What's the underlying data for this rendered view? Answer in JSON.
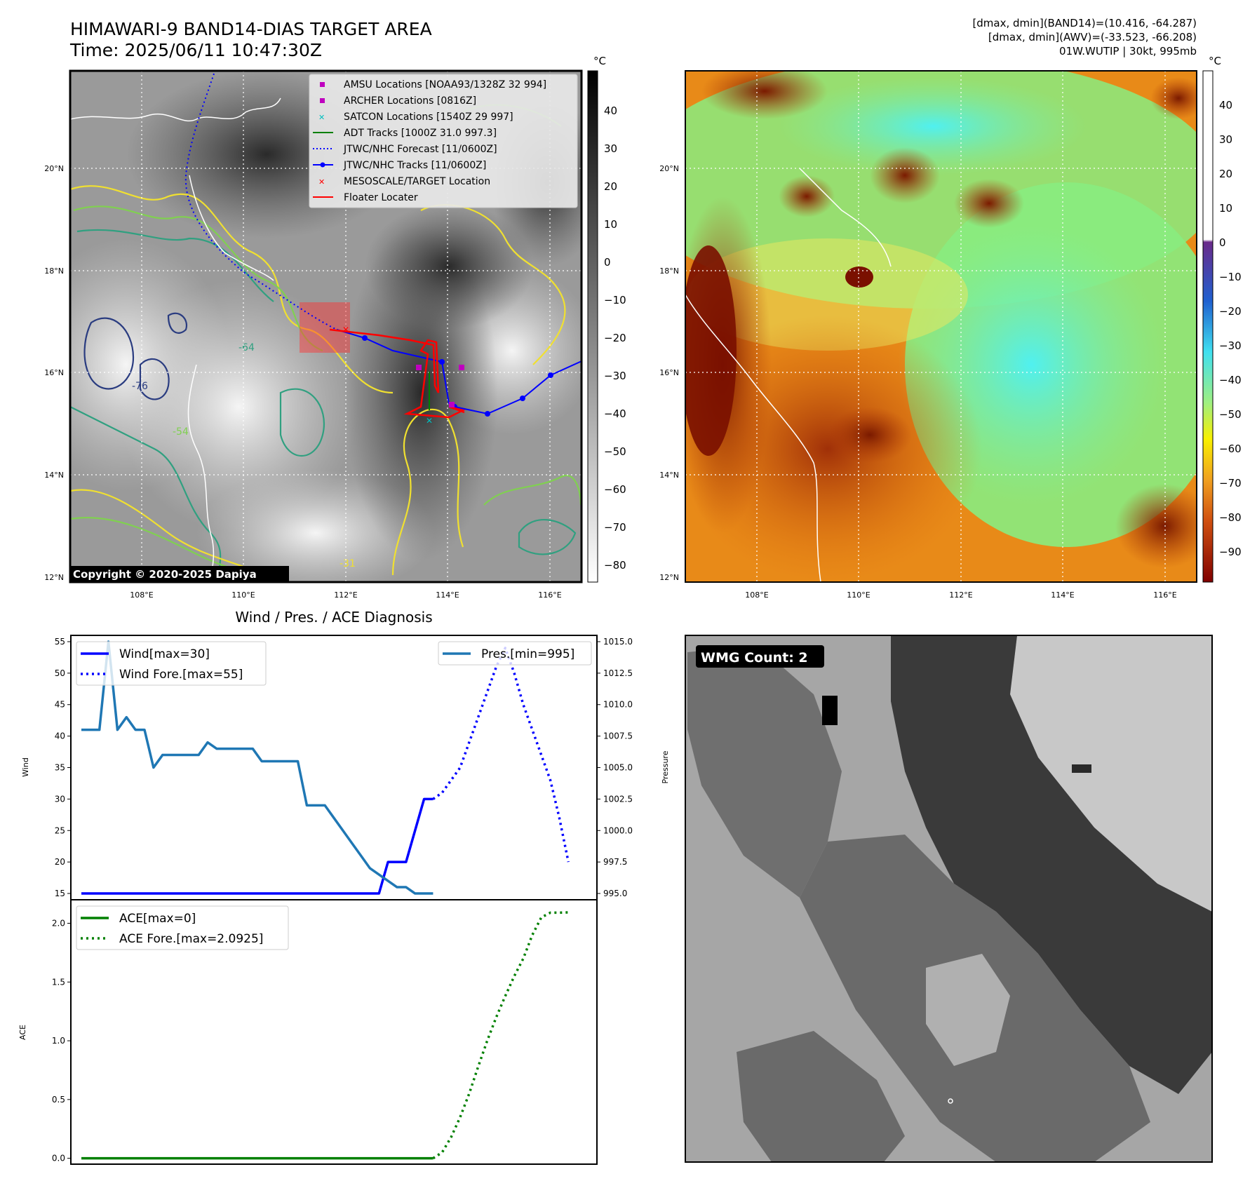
{
  "header": {
    "title_line1": "HIMAWARI-9 BAND14-DIAS TARGET AREA",
    "title_line2": "Time: 2025/06/11 10:47:30Z",
    "info_line1": "[dmax, dmin](BAND14)=(10.416, -64.287)",
    "info_line2": "[dmax, dmin](AWV)=(-33.523, -66.208)",
    "info_line3": "01W.WUTIP | 30kt, 995mb"
  },
  "map": {
    "lat_labels": [
      "20°N",
      "18°N",
      "16°N",
      "14°N",
      "12°N"
    ],
    "lon_labels": [
      "108°E",
      "110°E",
      "112°E",
      "114°E",
      "116°E"
    ],
    "copyright": "Copyright © 2020-2025 Dapiya",
    "legend": [
      {
        "label": "AMSU Locations [NOAA93/1328Z 32 994]",
        "marker": "square",
        "color": "#bf00bf"
      },
      {
        "label": "ARCHER Locations [0816Z]",
        "marker": "square",
        "color": "#bf00bf"
      },
      {
        "label": "SATCON Locations [1540Z 29 997]",
        "marker": "x",
        "color": "#00bfbf"
      },
      {
        "label": "ADT Tracks [1000Z 31.0 997.3]",
        "marker": "line",
        "color": "#008000"
      },
      {
        "label": "JTWC/NHC Forecast [11/0600Z]",
        "marker": "dotted",
        "color": "#0000ff"
      },
      {
        "label": "JTWC/NHC Tracks [11/0600Z]",
        "marker": "line-dot",
        "color": "#0000ff"
      },
      {
        "label": "MESOSCALE/TARGET Location",
        "marker": "x",
        "color": "#ff0000"
      },
      {
        "label": "Floater Locater",
        "marker": "line",
        "color": "#ff0000"
      }
    ],
    "contour_labels": [
      "-64",
      "-54",
      "-76",
      "-31"
    ]
  },
  "colorbar_left": {
    "unit": "°C",
    "ticks": [
      "40",
      "30",
      "20",
      "10",
      "0",
      "−10",
      "−20",
      "−30",
      "−40",
      "−50",
      "−60",
      "−70",
      "−80"
    ]
  },
  "colorbar_right": {
    "unit": "°C",
    "ticks": [
      "40",
      "30",
      "20",
      "10",
      "0",
      "−10",
      "−20",
      "−30",
      "−40",
      "−50",
      "−60",
      "−70",
      "−80",
      "−90"
    ]
  },
  "wmg": {
    "label": "WMG Count: 2"
  },
  "chart_data": [
    {
      "type": "line",
      "title": "Wind / Pres. / ACE Diagnosis",
      "ylabel": "Wind",
      "ylabel_right": "Pressure",
      "ylim": [
        14,
        56
      ],
      "ylim_right": [
        994.5,
        1015.5
      ],
      "yticks": [
        "55",
        "50",
        "45",
        "40",
        "35",
        "30",
        "25",
        "20",
        "15"
      ],
      "yticks_right": [
        "1015.0",
        "1012.5",
        "1010.0",
        "1007.5",
        "1005.0",
        "1002.5",
        "1000.0",
        "997.5",
        "995.0"
      ],
      "series": [
        {
          "name": "Wind[max=30]",
          "color": "#0000ff",
          "style": "solid",
          "axis": "left",
          "x": [
            0,
            1,
            2,
            3,
            4,
            5,
            6,
            7,
            8,
            9,
            10,
            11,
            12,
            13,
            14,
            15,
            16,
            17,
            18,
            19,
            20,
            21,
            22,
            23,
            24,
            25,
            26,
            27,
            28,
            29,
            30,
            31,
            32,
            33,
            34,
            35,
            36,
            37,
            38,
            39
          ],
          "values": [
            15,
            15,
            15,
            15,
            15,
            15,
            15,
            15,
            15,
            15,
            15,
            15,
            15,
            15,
            15,
            15,
            15,
            15,
            15,
            15,
            15,
            15,
            15,
            15,
            15,
            15,
            15,
            15,
            15,
            15,
            15,
            15,
            15,
            15,
            20,
            20,
            20,
            25,
            30,
            30
          ]
        },
        {
          "name": "Wind Fore.[max=55]",
          "color": "#0000ff",
          "style": "dotted",
          "axis": "left",
          "x": [
            39,
            40,
            41,
            42,
            43,
            44,
            45,
            46,
            47,
            48,
            49,
            50,
            51,
            52,
            53,
            54
          ],
          "values": [
            30,
            31,
            33,
            35,
            39,
            43,
            47,
            51,
            54,
            50,
            45,
            41,
            37,
            33,
            27,
            20
          ]
        },
        {
          "name": "Pres.[min=995]",
          "color": "#1f77b4",
          "style": "solid",
          "axis": "right",
          "x": [
            0,
            1,
            2,
            3,
            4,
            5,
            6,
            7,
            8,
            9,
            10,
            11,
            12,
            13,
            14,
            15,
            16,
            17,
            18,
            19,
            20,
            21,
            22,
            23,
            24,
            25,
            26,
            27,
            28,
            29,
            30,
            31,
            32,
            33,
            34,
            35,
            36,
            37,
            38,
            39
          ],
          "values": [
            1008,
            1008,
            1008,
            1015,
            1008,
            1009,
            1008,
            1008,
            1005,
            1006,
            1006,
            1006,
            1006,
            1006,
            1007,
            1006.5,
            1006.5,
            1006.5,
            1006.5,
            1006.5,
            1005.5,
            1005.5,
            1005.5,
            1005.5,
            1005.5,
            1002,
            1002,
            1002,
            1001,
            1000,
            999,
            998,
            997,
            996.5,
            996,
            995.5,
            995.5,
            995,
            995,
            995
          ]
        }
      ]
    },
    {
      "type": "line",
      "ylabel": "ACE",
      "ylim": [
        -0.05,
        2.2
      ],
      "yticks": [
        "2.0",
        "1.5",
        "1.0",
        "0.5",
        "0.0"
      ],
      "series": [
        {
          "name": "ACE[max=0]",
          "color": "#008000",
          "style": "solid",
          "x": [
            0,
            39
          ],
          "values": [
            0,
            0
          ]
        },
        {
          "name": "ACE Fore.[max=2.0925]",
          "color": "#008000",
          "style": "dotted",
          "x": [
            39,
            40,
            41,
            42,
            43,
            44,
            45,
            46,
            47,
            48,
            49,
            50,
            51,
            52,
            53,
            54
          ],
          "values": [
            0,
            0.05,
            0.18,
            0.35,
            0.55,
            0.78,
            1.0,
            1.2,
            1.38,
            1.55,
            1.7,
            1.9,
            2.05,
            2.09,
            2.09,
            2.0925
          ]
        }
      ]
    }
  ]
}
